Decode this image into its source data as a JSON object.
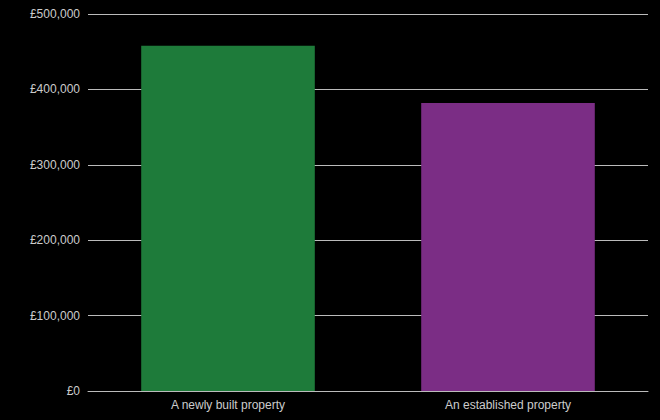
{
  "chart_data": {
    "type": "bar",
    "categories": [
      "A newly built property",
      "An established property"
    ],
    "values": [
      458000,
      382000
    ],
    "colors": [
      "#1e7b3a",
      "#7b2d85"
    ],
    "ylim": [
      0,
      500000
    ],
    "yticks": [
      {
        "value": 0,
        "label": "£0"
      },
      {
        "value": 100000,
        "label": "£100,000"
      },
      {
        "value": 200000,
        "label": "£200,000"
      },
      {
        "value": 300000,
        "label": "£300,000"
      },
      {
        "value": 400000,
        "label": "£400,000"
      },
      {
        "value": 500000,
        "label": "£500,000"
      }
    ],
    "grid": true
  }
}
